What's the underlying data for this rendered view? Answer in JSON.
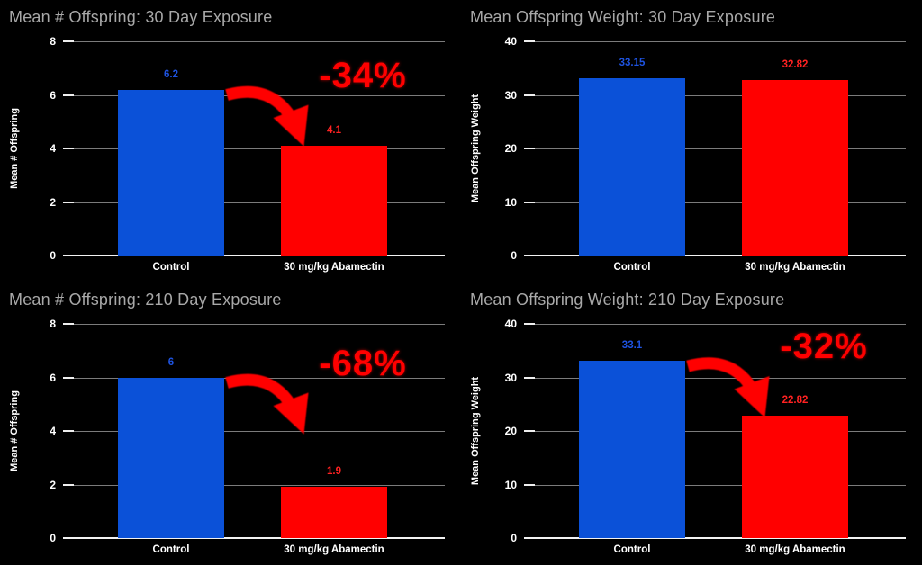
{
  "page": {
    "background": "#000000"
  },
  "colors": {
    "title": "#a8a8a8",
    "axis_text": "#ffffff",
    "gridline": "#9a9a9a",
    "baseline": "#f2f2f2",
    "control_bar": "#0b51d8",
    "treatment_bar": "#ff0000",
    "control_value_label": "#1e53e0",
    "treatment_value_label": "#ff2222",
    "annotation": "#ff0000"
  },
  "chart_data": [
    {
      "type": "bar",
      "title": "Mean # Offspring: 30 Day Exposure",
      "xlabel": "",
      "ylabel": "Mean # Offspring",
      "ylim": [
        0,
        8
      ],
      "yticks": [
        0,
        2,
        4,
        6,
        8
      ],
      "grid": true,
      "legend": "none",
      "categories": [
        "Control",
        "30 mg/kg Abamectin"
      ],
      "series": [
        {
          "name": "Mean # Offspring",
          "values": [
            6.2,
            4.1
          ]
        }
      ],
      "value_labels": [
        "6.2",
        "4.1"
      ],
      "bar_colors": [
        "#0b51d8",
        "#ff0000"
      ],
      "annotation": {
        "text": "-34%",
        "percent_change": -34
      }
    },
    {
      "type": "bar",
      "title": "Mean Offspring Weight: 30 Day Exposure",
      "xlabel": "",
      "ylabel": "Mean Offspring Weight",
      "ylim": [
        0,
        40
      ],
      "yticks": [
        0,
        10,
        20,
        30,
        40
      ],
      "grid": true,
      "legend": "none",
      "categories": [
        "Control",
        "30 mg/kg Abamectin"
      ],
      "series": [
        {
          "name": "Mean Offspring Weight",
          "values": [
            33.15,
            32.82
          ]
        }
      ],
      "value_labels": [
        "33.15",
        "32.82"
      ],
      "bar_colors": [
        "#0b51d8",
        "#ff0000"
      ],
      "annotation": null
    },
    {
      "type": "bar",
      "title": "Mean # Offspring: 210 Day Exposure",
      "xlabel": "",
      "ylabel": "Mean # Offspring",
      "ylim": [
        0,
        8
      ],
      "yticks": [
        0,
        2,
        4,
        6,
        8
      ],
      "grid": true,
      "legend": "none",
      "categories": [
        "Control",
        "30 mg/kg Abamectin"
      ],
      "series": [
        {
          "name": "Mean # Offspring",
          "values": [
            6,
            1.9
          ]
        }
      ],
      "value_labels": [
        "6",
        "1.9"
      ],
      "bar_colors": [
        "#0b51d8",
        "#ff0000"
      ],
      "annotation": {
        "text": "-68%",
        "percent_change": -68
      }
    },
    {
      "type": "bar",
      "title": "Mean Offspring Weight: 210 Day Exposure",
      "xlabel": "",
      "ylabel": "Mean Offspring Weight",
      "ylim": [
        0,
        40
      ],
      "yticks": [
        0,
        10,
        20,
        30,
        40
      ],
      "grid": true,
      "legend": "none",
      "categories": [
        "Control",
        "30 mg/kg Abamectin"
      ],
      "series": [
        {
          "name": "Mean Offspring Weight",
          "values": [
            33.1,
            22.82
          ]
        }
      ],
      "value_labels": [
        "33.1",
        "22.82"
      ],
      "bar_colors": [
        "#0b51d8",
        "#ff0000"
      ],
      "annotation": {
        "text": "-32%",
        "percent_change": -32
      }
    }
  ]
}
